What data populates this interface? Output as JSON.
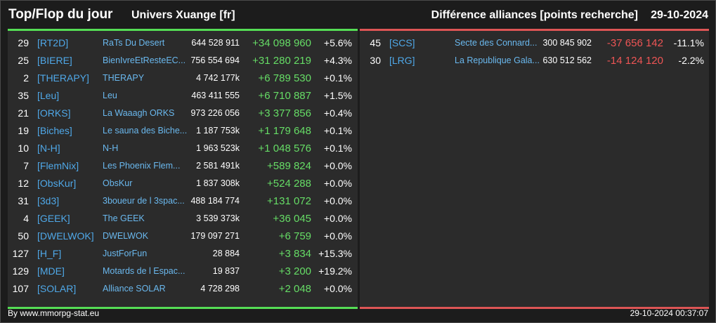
{
  "header": {
    "title": "Top/Flop du jour",
    "universe": "Univers Xuange [fr]",
    "subtitle": "Différence alliances [points recherche]",
    "date": "29-10-2024"
  },
  "colors": {
    "positive": "#66dd66",
    "negative": "#ee5555",
    "tag": "#4fa8e8",
    "top_border": "#55dd55",
    "flop_border": "#dd5555"
  },
  "top": [
    {
      "rank": "29",
      "tag": "[RT2D]",
      "name": "RaTs Du Desert",
      "points": "644 528 911",
      "diff": "+34 098 960",
      "pct": "+5.6%"
    },
    {
      "rank": "25",
      "tag": "[BIERE]",
      "name": "BienIvreEtResteEC...",
      "points": "756 554 694",
      "diff": "+31 280 219",
      "pct": "+4.3%"
    },
    {
      "rank": "2",
      "tag": "[THERAPY]",
      "name": "THERAPY",
      "points": "4 742 177k",
      "diff": "+6 789 530",
      "pct": "+0.1%"
    },
    {
      "rank": "35",
      "tag": "[Leu]",
      "name": "Leu",
      "points": "463 411 555",
      "diff": "+6 710 887",
      "pct": "+1.5%"
    },
    {
      "rank": "21",
      "tag": "[ORKS]",
      "name": "La Waaagh ORKS",
      "points": "973 226 056",
      "diff": "+3 377 856",
      "pct": "+0.4%"
    },
    {
      "rank": "19",
      "tag": "[Biches]",
      "name": "Le sauna des Biche...",
      "points": "1 187 753k",
      "diff": "+1 179 648",
      "pct": "+0.1%"
    },
    {
      "rank": "10",
      "tag": "[N-H]",
      "name": "N-H",
      "points": "1 963 523k",
      "diff": "+1 048 576",
      "pct": "+0.1%"
    },
    {
      "rank": "7",
      "tag": "[FlemNix]",
      "name": "Les Phoenix Flem...",
      "points": "2 581 491k",
      "diff": "+589 824",
      "pct": "+0.0%"
    },
    {
      "rank": "12",
      "tag": "[ObsKur]",
      "name": "ObsKur",
      "points": "1 837 308k",
      "diff": "+524 288",
      "pct": "+0.0%"
    },
    {
      "rank": "31",
      "tag": "[3d3]",
      "name": "3boueur de l 3spac...",
      "points": "488 184 774",
      "diff": "+131 072",
      "pct": "+0.0%"
    },
    {
      "rank": "4",
      "tag": "[GEEK]",
      "name": "The GEEK",
      "points": "3 539 373k",
      "diff": "+36 045",
      "pct": "+0.0%"
    },
    {
      "rank": "50",
      "tag": "[DWELWOK]",
      "name": "DWELWOK",
      "points": "179 097 271",
      "diff": "+6 759",
      "pct": "+0.0%"
    },
    {
      "rank": "127",
      "tag": "[H_F]",
      "name": "JustForFun",
      "points": "28 884",
      "diff": "+3 834",
      "pct": "+15.3%"
    },
    {
      "rank": "129",
      "tag": "[MDE]",
      "name": "Motards de l Espac...",
      "points": "19 837",
      "diff": "+3 200",
      "pct": "+19.2%"
    },
    {
      "rank": "107",
      "tag": "[SOLAR]",
      "name": "Alliance SOLAR",
      "points": "4 728 298",
      "diff": "+2 048",
      "pct": "+0.0%"
    }
  ],
  "flop": [
    {
      "rank": "45",
      "tag": "[SCS]",
      "name": "Secte des Connard...",
      "points": "300 845 902",
      "diff": "-37 656 142",
      "pct": "-11.1%"
    },
    {
      "rank": "30",
      "tag": "[LRG]",
      "name": "La Republique Gala...",
      "points": "630 512 562",
      "diff": "-14 124 120",
      "pct": "-2.2%"
    }
  ],
  "footer": {
    "credit": "By www.mmorpg-stat.eu",
    "timestamp": "29-10-2024 00:37:07"
  }
}
